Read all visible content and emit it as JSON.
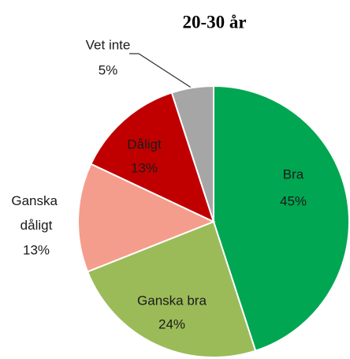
{
  "chart_data": {
    "type": "pie",
    "title": "20-30 år",
    "categories": [
      "Bra",
      "Ganska bra",
      "Ganska dåligt",
      "Dåligt",
      "Vet inte"
    ],
    "values": [
      45,
      24,
      13,
      13,
      5
    ],
    "value_labels": [
      "45%",
      "24%",
      "13%",
      "13%",
      "5%"
    ],
    "colors": [
      "#00a651",
      "#9bbb59",
      "#f59d8c",
      "#c00000",
      "#a6a6a6"
    ]
  }
}
